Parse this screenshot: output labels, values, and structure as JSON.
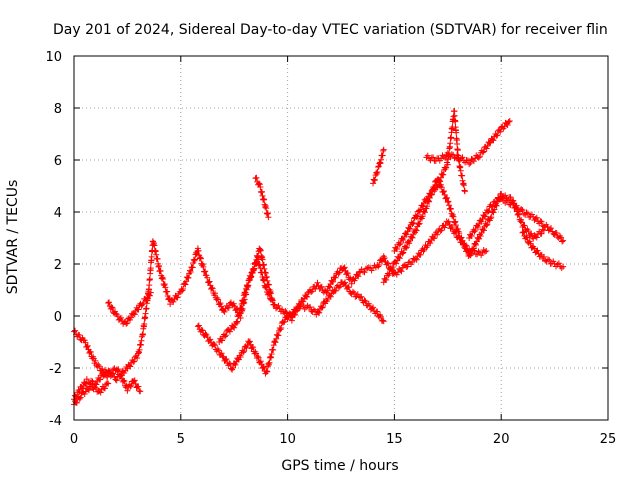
{
  "chart_data": {
    "type": "scatter",
    "title": "Day 201 of 2024, Sidereal Day-to-day VTEC variation (SDTVAR) for receiver flin",
    "xlabel": "GPS time / hours",
    "ylabel": "SDTVAR / TECUs",
    "xlim": [
      0,
      25
    ],
    "ylim": [
      -4,
      10
    ],
    "xticks": [
      "0",
      "5",
      "10",
      "15",
      "20",
      "25"
    ],
    "yticks": [
      "-4",
      "-2",
      "0",
      "2",
      "4",
      "6",
      "8",
      "10"
    ],
    "grid": true,
    "marker": "+",
    "series": [
      {
        "name": "SDTVAR",
        "color": "#ff0000",
        "tracks": [
          {
            "x": [
              0.0,
              0.3,
              0.6,
              1.0,
              1.5,
              2.0,
              2.5,
              3.0,
              3.2,
              3.5,
              3.7,
              4.0,
              4.5,
              5.0,
              5.5,
              5.8
            ],
            "y": [
              -3.2,
              -2.8,
              -2.5,
              -2.6,
              -2.1,
              -2.4,
              -2.0,
              -1.5,
              -0.8,
              1.0,
              2.9,
              1.8,
              0.5,
              0.9,
              1.8,
              2.6
            ]
          },
          {
            "x": [
              0.0,
              0.5,
              1.0,
              1.5,
              2.0,
              2.5,
              2.8,
              3.1
            ],
            "y": [
              -0.6,
              -1.0,
              -1.8,
              -2.3,
              -2.0,
              -2.8,
              -2.5,
              -2.9
            ]
          },
          {
            "x": [
              1.6,
              2.0,
              2.4,
              2.8,
              3.2,
              3.6
            ],
            "y": [
              0.5,
              0.0,
              -0.3,
              0.1,
              0.5,
              0.9
            ]
          },
          {
            "x": [
              0.0,
              0.4,
              0.8,
              1.2,
              1.6
            ],
            "y": [
              -3.4,
              -3.0,
              -2.7,
              -2.9,
              -2.6
            ]
          },
          {
            "x": [
              5.8,
              6.2,
              6.6,
              7.0,
              7.4,
              7.8,
              8.2,
              8.6,
              9.0,
              9.4,
              9.8,
              10.2,
              10.6,
              11.0,
              11.4,
              11.8,
              12.2,
              12.6,
              13.0,
              13.4,
              13.8,
              14.2,
              14.5
            ],
            "y": [
              2.5,
              1.5,
              0.8,
              0.2,
              0.5,
              0.0,
              1.4,
              2.2,
              1.0,
              0.4,
              0.2,
              -0.1,
              0.5,
              0.9,
              1.2,
              0.9,
              1.5,
              1.9,
              1.3,
              1.7,
              1.8,
              1.9,
              2.3
            ]
          },
          {
            "x": [
              5.8,
              6.2,
              6.6,
              7.0,
              7.4,
              7.8,
              8.2,
              8.6,
              9.0,
              9.4,
              9.8,
              10.2,
              10.6,
              11.0,
              11.4,
              11.8,
              12.2,
              12.6,
              13.0,
              13.4,
              13.8,
              14.2,
              14.5
            ],
            "y": [
              -0.4,
              -0.8,
              -1.2,
              -1.6,
              -2.0,
              -1.5,
              -1.0,
              -1.6,
              -2.2,
              -1.0,
              -0.2,
              0.1,
              0.4,
              0.3,
              0.1,
              0.6,
              1.0,
              1.3,
              0.9,
              0.7,
              0.4,
              0.1,
              -0.2
            ]
          },
          {
            "x": [
              6.8,
              7.2,
              7.6,
              8.0,
              8.4,
              8.7,
              9.0,
              9.3
            ],
            "y": [
              -1.0,
              -0.6,
              -0.3,
              0.9,
              1.8,
              2.6,
              1.5,
              0.6
            ]
          },
          {
            "x": [
              8.5,
              8.7,
              8.9,
              9.1
            ],
            "y": [
              5.3,
              5.0,
              4.4,
              3.8
            ]
          },
          {
            "x": [
              14.0,
              14.3,
              14.5
            ],
            "y": [
              5.1,
              5.8,
              6.4
            ]
          },
          {
            "x": [
              14.5,
              15.0,
              15.5,
              16.0,
              16.5,
              17.0,
              17.5,
              18.0,
              18.5,
              19.0,
              19.3
            ],
            "y": [
              2.2,
              1.6,
              1.9,
              2.2,
              2.7,
              3.2,
              3.6,
              3.0,
              2.5,
              2.4,
              2.5
            ]
          },
          {
            "x": [
              14.5,
              15.0,
              15.5,
              16.0,
              16.5,
              17.0,
              17.5,
              18.0,
              18.5,
              19.0,
              19.5,
              20.0
            ],
            "y": [
              1.3,
              2.0,
              2.6,
              3.3,
              4.2,
              5.3,
              4.4,
              3.2,
              2.3,
              3.1,
              3.8,
              4.7
            ]
          },
          {
            "x": [
              15.0,
              15.5,
              16.0,
              16.5,
              17.0,
              17.5,
              17.8,
              18.0,
              18.3
            ],
            "y": [
              2.5,
              3.1,
              3.8,
              4.5,
              5.0,
              5.9,
              7.9,
              6.0,
              4.8
            ]
          },
          {
            "x": [
              16.5,
              17.0,
              17.5,
              18.0,
              18.5,
              19.0,
              19.5,
              20.0,
              20.4
            ],
            "y": [
              6.1,
              6.0,
              6.2,
              6.1,
              5.9,
              6.2,
              6.7,
              7.2,
              7.5
            ]
          },
          {
            "x": [
              18.5,
              19.0,
              19.5,
              20.0,
              20.5,
              21.0,
              21.5,
              22.0
            ],
            "y": [
              3.0,
              3.6,
              4.2,
              4.6,
              4.5,
              3.5,
              3.0,
              3.3
            ]
          },
          {
            "x": [
              20.0,
              20.5,
              21.0,
              21.5,
              22.0,
              22.5,
              22.9
            ],
            "y": [
              4.5,
              4.3,
              4.0,
              3.8,
              3.5,
              3.2,
              2.9
            ]
          },
          {
            "x": [
              21.0,
              21.5,
              22.0,
              22.5,
              22.9
            ],
            "y": [
              3.2,
              2.6,
              2.2,
              2.0,
              1.9
            ]
          }
        ]
      }
    ]
  }
}
